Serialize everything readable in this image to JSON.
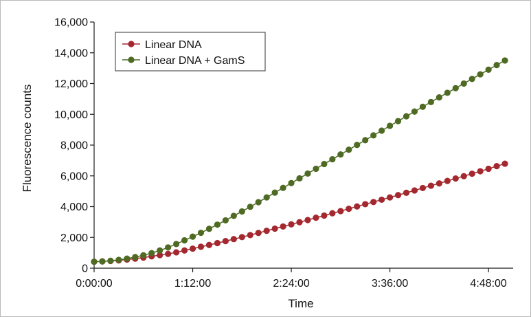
{
  "chart_data": {
    "type": "line",
    "title": "",
    "xlabel": "Time",
    "ylabel": "Fluorescence counts",
    "x_unit": "h:mm:ss",
    "xlim": [
      "0:00:00",
      "5:06:00"
    ],
    "ylim": [
      0,
      16000
    ],
    "x_ticks": [
      "0:00:00",
      "1:12:00",
      "2:24:00",
      "3:36:00",
      "4:48:00"
    ],
    "y_ticks": [
      "0",
      "2,000",
      "4,000",
      "6,000",
      "8,000",
      "10,000",
      "12,000",
      "14,000",
      "16,000"
    ],
    "grid": false,
    "legend_position": "top-left",
    "x": [
      "0:00:00",
      "0:06:00",
      "0:12:00",
      "0:18:00",
      "0:24:00",
      "0:30:00",
      "0:36:00",
      "0:42:00",
      "0:48:00",
      "0:54:00",
      "1:00:00",
      "1:06:00",
      "1:12:00",
      "1:18:00",
      "1:24:00",
      "1:30:00",
      "1:36:00",
      "1:42:00",
      "1:48:00",
      "1:54:00",
      "2:00:00",
      "2:06:00",
      "2:12:00",
      "2:18:00",
      "2:24:00",
      "2:30:00",
      "2:36:00",
      "2:42:00",
      "2:48:00",
      "2:54:00",
      "3:00:00",
      "3:06:00",
      "3:12:00",
      "3:18:00",
      "3:24:00",
      "3:30:00",
      "3:36:00",
      "3:42:00",
      "3:48:00",
      "3:54:00",
      "4:00:00",
      "4:06:00",
      "4:12:00",
      "4:18:00",
      "4:24:00",
      "4:30:00",
      "4:36:00",
      "4:42:00",
      "4:48:00",
      "4:54:00",
      "5:00:00"
    ],
    "series": [
      {
        "name": "Linear DNA",
        "color": "#a3282f",
        "values": [
          420,
          440,
          470,
          510,
          560,
          620,
          690,
          770,
          850,
          930,
          1030,
          1150,
          1270,
          1390,
          1510,
          1630,
          1760,
          1890,
          2020,
          2150,
          2290,
          2430,
          2570,
          2710,
          2850,
          2990,
          3130,
          3280,
          3420,
          3570,
          3710,
          3860,
          4010,
          4160,
          4300,
          4450,
          4600,
          4750,
          4900,
          5050,
          5210,
          5360,
          5510,
          5670,
          5830,
          5980,
          6140,
          6300,
          6460,
          6630,
          6790
        ]
      },
      {
        "name": "Linear DNA + GamS",
        "color": "#4f6b23",
        "values": [
          420,
          440,
          480,
          540,
          620,
          720,
          840,
          980,
          1150,
          1350,
          1570,
          1810,
          2050,
          2300,
          2560,
          2830,
          3110,
          3400,
          3690,
          3990,
          4290,
          4600,
          4910,
          5220,
          5530,
          5840,
          6150,
          6460,
          6770,
          7080,
          7390,
          7700,
          8010,
          8320,
          8630,
          8940,
          9250,
          9560,
          9870,
          10180,
          10490,
          10800,
          11100,
          11400,
          11700,
          12000,
          12300,
          12600,
          12900,
          13200,
          13500
        ]
      }
    ]
  }
}
